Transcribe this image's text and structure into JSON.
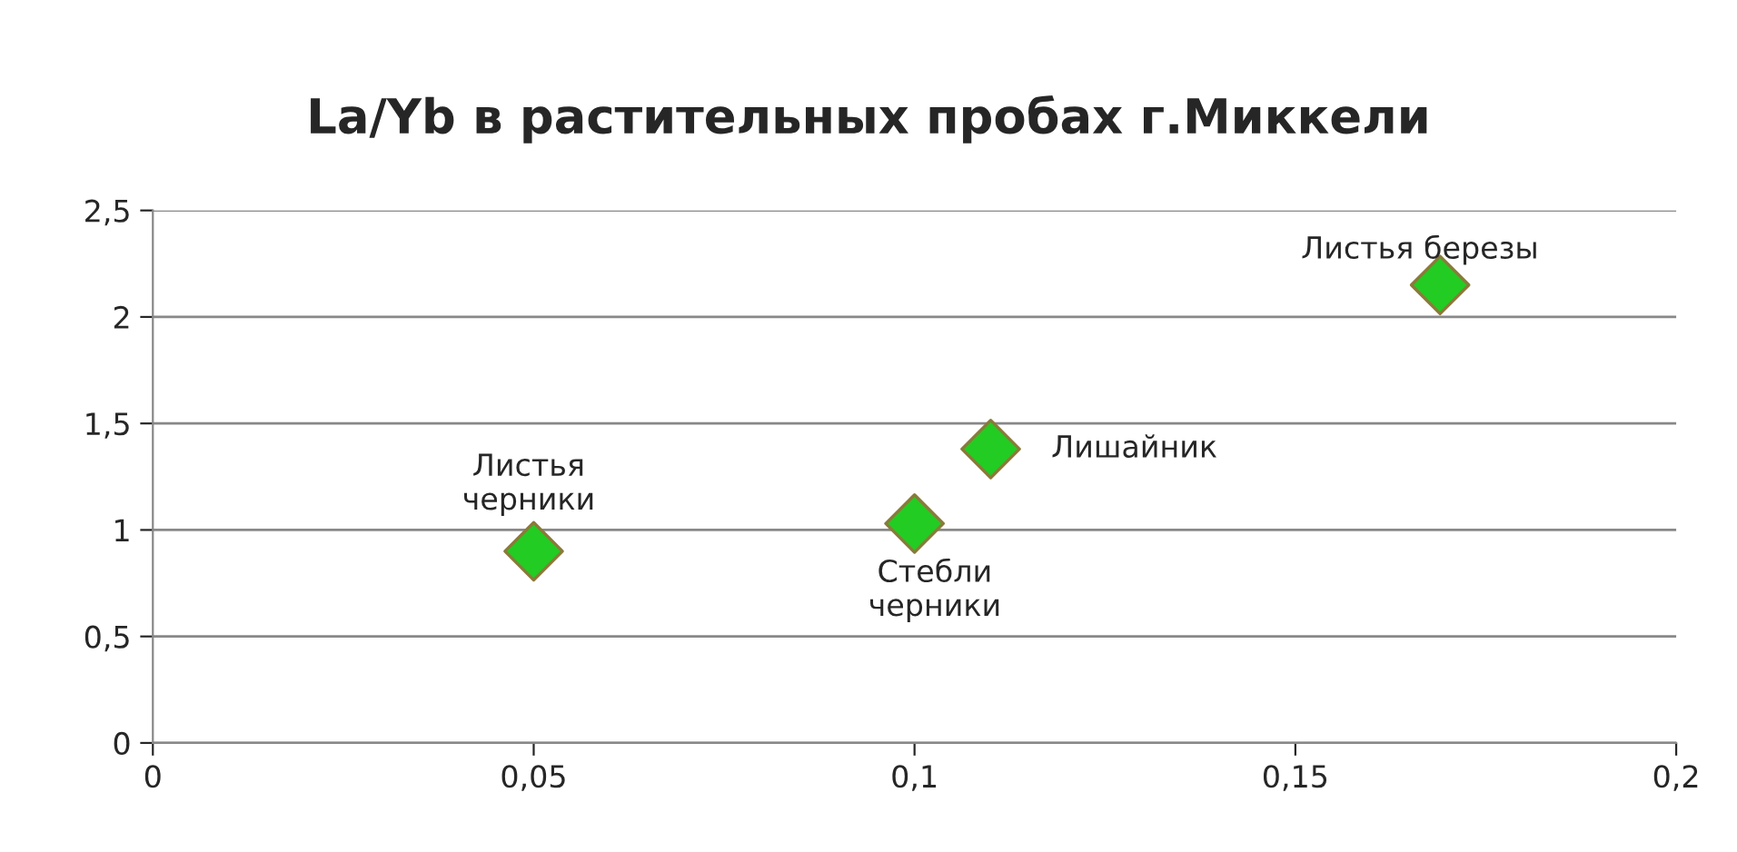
{
  "chart_data": {
    "type": "scatter",
    "title": "La/Yb в растительных пробах г.Миккели",
    "x": [
      0.05,
      0.1,
      0.11,
      0.169
    ],
    "series": [
      {
        "color": "#22cc22",
        "values": [
          0.9,
          1.03,
          1.38,
          2.15
        ]
      }
    ],
    "marker": "diamond",
    "xlim": [
      0,
      0.2
    ],
    "xticks": [
      {
        "value": 0,
        "label": "0"
      },
      {
        "value": 0.05,
        "label": "0,05"
      },
      {
        "value": 0.1,
        "label": "0,1"
      },
      {
        "value": 0.15,
        "label": "0,15"
      },
      {
        "value": 0.2,
        "label": "0,2"
      }
    ],
    "ylim": [
      0,
      2.5
    ],
    "yticks": [
      {
        "value": 0,
        "label": "0"
      },
      {
        "value": 0.5,
        "label": "0,5"
      },
      {
        "value": 1,
        "label": "1"
      },
      {
        "value": 1.5,
        "label": "1,5"
      },
      {
        "value": 2,
        "label": "2"
      },
      {
        "value": 2.5,
        "label": "2,5"
      }
    ],
    "grid": "y",
    "annotations": [
      {
        "text": "Листья\nчерники",
        "x": 0.05,
        "y": 0.9
      },
      {
        "text": "Стебли\nчерники",
        "x": 0.1,
        "y": 1.03
      },
      {
        "text": "Лишайник",
        "x": 0.11,
        "y": 1.38
      },
      {
        "text": "Листья березы",
        "x": 0.169,
        "y": 2.15
      }
    ]
  }
}
